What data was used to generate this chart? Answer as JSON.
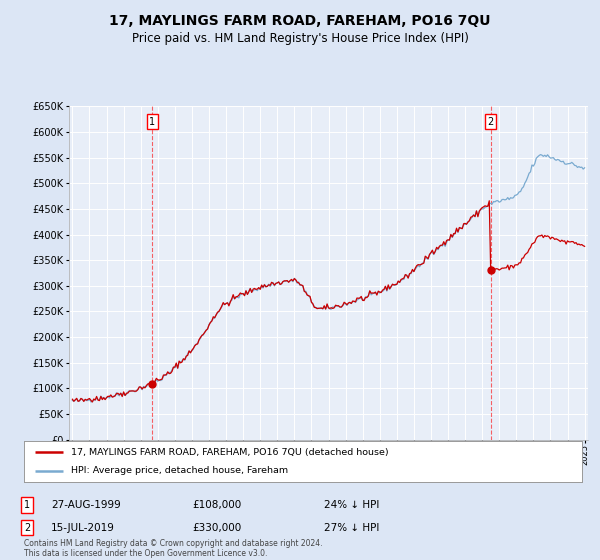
{
  "title": "17, MAYLINGS FARM ROAD, FAREHAM, PO16 7QU",
  "subtitle": "Price paid vs. HM Land Registry's House Price Index (HPI)",
  "title_fontsize": 10,
  "subtitle_fontsize": 8.5,
  "bg_color": "#dce6f5",
  "plot_bg_color": "#e8eef8",
  "grid_color": "#ffffff",
  "red_line_color": "#cc0000",
  "blue_line_color": "#7aaad0",
  "marker1_price": 108000,
  "marker1_text": "27-AUG-1999",
  "marker1_pct": "24% ↓ HPI",
  "marker2_price": 330000,
  "marker2_text": "15-JUL-2019",
  "marker2_pct": "27% ↓ HPI",
  "ylim_min": 0,
  "ylim_max": 650000,
  "yticks": [
    0,
    50000,
    100000,
    150000,
    200000,
    250000,
    300000,
    350000,
    400000,
    450000,
    500000,
    550000,
    600000,
    650000
  ],
  "legend_line1": "17, MAYLINGS FARM ROAD, FAREHAM, PO16 7QU (detached house)",
  "legend_line2": "HPI: Average price, detached house, Fareham",
  "footer": "Contains HM Land Registry data © Crown copyright and database right 2024.\nThis data is licensed under the Open Government Licence v3.0."
}
